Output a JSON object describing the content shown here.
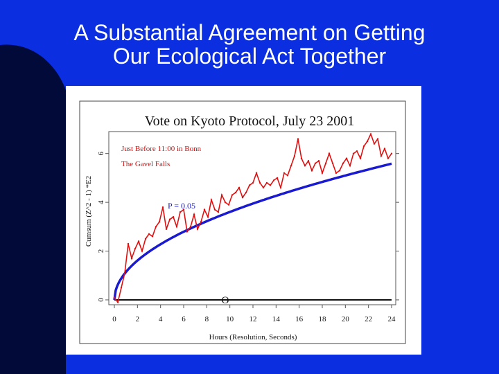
{
  "slide": {
    "title_line1": "A Substantial Agreement on Getting",
    "title_line2": "Our Ecological Act Together"
  },
  "colors": {
    "background": "#0a2ee0",
    "cumsum_line": "#e01010",
    "fit_curve": "#1a1ad0",
    "annotation": "#d01010"
  },
  "chart_data": {
    "type": "line",
    "title": "Vote on Kyoto Protocol, July 23 2001",
    "xlabel": "Hours (Resolution, Seconds)",
    "ylabel": "Cumsum (Z^2 - 1) *E2",
    "xlim": [
      0,
      24
    ],
    "ylim": [
      -0.2,
      6.9
    ],
    "x_ticks": [
      "0",
      "2",
      "4",
      "6",
      "8",
      "10",
      "12",
      "14",
      "16",
      "18",
      "20",
      "22",
      "24"
    ],
    "y_ticks": [
      "0",
      "2",
      "4",
      "6"
    ],
    "annotations": [
      "Just Before 11:00 in Bonn",
      "The Gavel Falls"
    ],
    "curve_label": "P = 0.05",
    "zero_marker": "O",
    "zero_marker_x": 9.6,
    "fit_curve": {
      "label": "P = 0.05",
      "coefficient": 1.14,
      "exponent": 0.5
    },
    "series": [
      {
        "x": [
          0,
          0.3,
          0.6,
          0.9,
          1.2,
          1.5,
          1.8,
          2.1,
          2.4,
          2.7,
          3.0,
          3.3,
          3.6,
          3.9,
          4.2,
          4.5,
          4.8,
          5.1,
          5.4,
          5.7,
          6.0,
          6.3,
          6.6,
          6.9,
          7.2,
          7.5,
          7.8,
          8.1,
          8.4,
          8.7,
          9.0,
          9.3,
          9.6,
          9.9,
          10.2,
          10.5,
          10.8,
          11.1,
          11.4,
          11.7,
          12.0,
          12.3,
          12.6,
          12.9,
          13.2,
          13.5,
          13.8,
          14.1,
          14.4,
          14.7,
          15.0,
          15.3,
          15.6,
          15.9,
          16.2,
          16.5,
          16.8,
          17.1,
          17.4,
          17.7,
          18.0,
          18.3,
          18.6,
          18.9,
          19.2,
          19.5,
          19.8,
          20.1,
          20.4,
          20.7,
          21.0,
          21.3,
          21.6,
          21.9,
          22.2,
          22.5,
          22.8,
          23.1,
          23.4,
          23.7,
          24.0
        ],
        "values": [
          0.1,
          -0.1,
          0.5,
          1.1,
          2.3,
          1.7,
          2.1,
          2.4,
          2.0,
          2.5,
          2.7,
          2.6,
          3.0,
          3.2,
          3.8,
          2.9,
          3.3,
          3.4,
          3.0,
          3.6,
          3.7,
          2.8,
          3.0,
          3.5,
          2.9,
          3.2,
          3.7,
          3.4,
          4.1,
          3.7,
          3.6,
          4.3,
          4.0,
          3.9,
          4.3,
          4.4,
          4.6,
          4.2,
          4.4,
          4.7,
          4.8,
          5.2,
          4.8,
          4.6,
          4.8,
          4.7,
          4.9,
          5.0,
          4.6,
          5.2,
          5.1,
          5.5,
          5.9,
          6.6,
          5.8,
          5.5,
          5.7,
          5.3,
          5.6,
          5.7,
          5.2,
          5.6,
          6.0,
          5.6,
          5.2,
          5.3,
          5.6,
          5.8,
          5.5,
          6.0,
          6.1,
          5.8,
          6.3,
          6.5,
          6.8,
          6.4,
          6.6,
          5.9,
          6.2,
          5.8,
          6.0
        ]
      }
    ]
  }
}
